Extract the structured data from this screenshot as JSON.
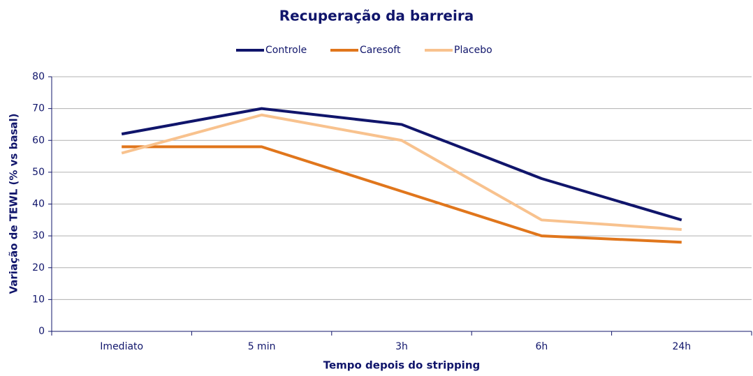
{
  "chart_data": {
    "type": "line",
    "title": "Recuperação da barreira",
    "x_label": "Tempo depois do stripping",
    "y_label": "Variação de TEWL  (% vs basal)",
    "categories": [
      "Imediato",
      "5 min",
      "3h",
      "6h",
      "24h"
    ],
    "series": [
      {
        "name": "Controle",
        "color": "#10156b",
        "values": [
          62,
          70,
          65,
          48,
          35
        ]
      },
      {
        "name": "Caresoft",
        "color": "#e0761c",
        "values": [
          58,
          58,
          44,
          30,
          28
        ]
      },
      {
        "name": "Placebo",
        "color": "#f8c28e",
        "values": [
          56,
          68,
          60,
          35,
          32
        ]
      }
    ],
    "ylim": [
      0,
      80
    ],
    "yticks": [
      0,
      10,
      20,
      30,
      40,
      50,
      60,
      70,
      80
    ],
    "grid": true,
    "legend": "top"
  }
}
